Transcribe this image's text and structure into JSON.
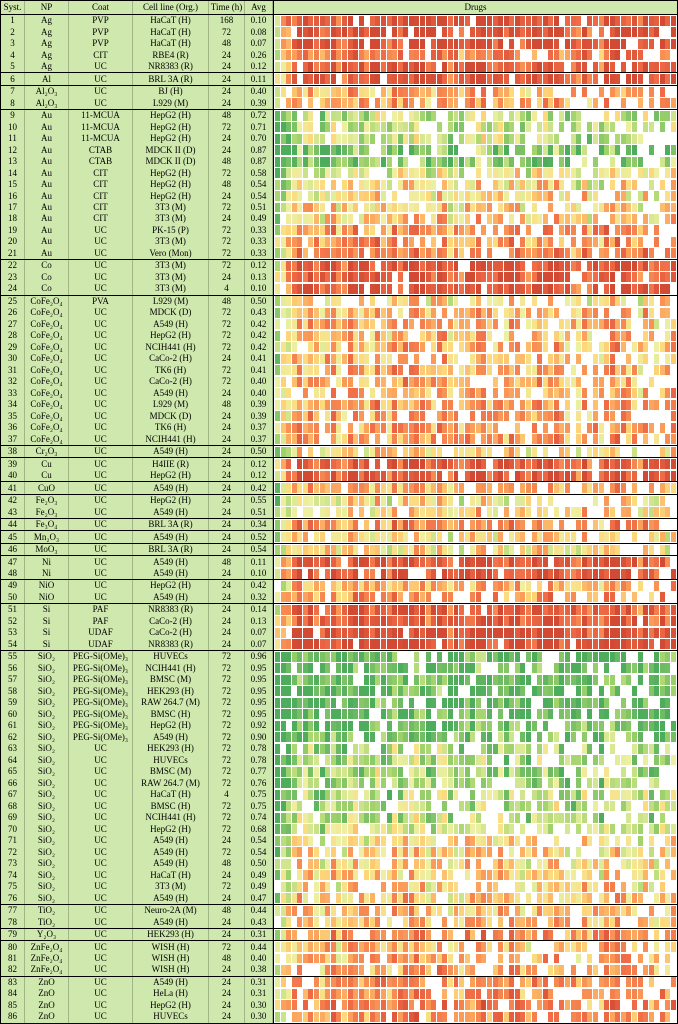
{
  "columns": [
    "Syst.",
    "NP",
    "Coat",
    "Cell line (Org.)",
    "Time (h)",
    "Avg",
    "Drugs"
  ],
  "colors": {
    "table_background": "#cfe8ad",
    "border": "#000000",
    "missing_cell": "#ffffff"
  },
  "chart_data": {
    "type": "heatmap",
    "title": "",
    "row_fields": [
      "syst",
      "np",
      "coat",
      "cell_line",
      "time_h",
      "avg"
    ],
    "n_drug_columns": 72,
    "seed": 42,
    "missing_color": "#ffffff",
    "colormap_stops": [
      [
        0.0,
        "#cf4631"
      ],
      [
        0.2,
        "#ef6a46"
      ],
      [
        0.38,
        "#fb9d59"
      ],
      [
        0.5,
        "#fdd97c"
      ],
      [
        0.62,
        "#edf0a2"
      ],
      [
        0.78,
        "#a3d46c"
      ],
      [
        1.0,
        "#46a85c"
      ]
    ],
    "rows": [
      [
        "1",
        "Ag",
        "PVP",
        "HaCaT (H)",
        "168",
        "0.10"
      ],
      [
        "2",
        "Ag",
        "PVP",
        "HaCaT (H)",
        "72",
        "0.08"
      ],
      [
        "3",
        "Ag",
        "PVP",
        "HaCaT (H)",
        "48",
        "0.07"
      ],
      [
        "4",
        "Ag",
        "CIT",
        "RBE4 (R)",
        "24",
        "0.26"
      ],
      [
        "5",
        "Ag",
        "UC",
        "NR8383 (R)",
        "24",
        "0.12"
      ],
      [
        "6",
        "Al",
        "UC",
        "BRL 3A (R)",
        "24",
        "0.11"
      ],
      [
        "7",
        "Al₂O₃",
        "UC",
        "BJ (H)",
        "24",
        "0.40"
      ],
      [
        "8",
        "Al₂O₃",
        "UC",
        "L929 (M)",
        "24",
        "0.39"
      ],
      [
        "9",
        "Au",
        "11-MCUA",
        "HepG2 (H)",
        "48",
        "0.72"
      ],
      [
        "10",
        "Au",
        "11-MCUA",
        "HepG2 (H)",
        "72",
        "0.71"
      ],
      [
        "11",
        "Au",
        "11-MCUA",
        "HepG2 (H)",
        "24",
        "0.70"
      ],
      [
        "12",
        "Au",
        "CTAB",
        "MDCK II (D)",
        "24",
        "0.87"
      ],
      [
        "13",
        "Au",
        "CTAB",
        "MDCK II (D)",
        "48",
        "0.87"
      ],
      [
        "14",
        "Au",
        "CIT",
        "HepG2 (H)",
        "72",
        "0.58"
      ],
      [
        "15",
        "Au",
        "CIT",
        "HepG2 (H)",
        "48",
        "0.54"
      ],
      [
        "16",
        "Au",
        "CIT",
        "HepG2 (H)",
        "24",
        "0.54"
      ],
      [
        "17",
        "Au",
        "CIT",
        "3T3 (M)",
        "72",
        "0.51"
      ],
      [
        "18",
        "Au",
        "CIT",
        "3T3 (M)",
        "24",
        "0.49"
      ],
      [
        "19",
        "Au",
        "UC",
        "PK-15 (P)",
        "72",
        "0.33"
      ],
      [
        "20",
        "Au",
        "UC",
        "3T3 (M)",
        "72",
        "0.33"
      ],
      [
        "21",
        "Au",
        "UC",
        "Vero (Mon)",
        "72",
        "0.33"
      ],
      [
        "22",
        "Co",
        "UC",
        "3T3 (M)",
        "72",
        "0.12"
      ],
      [
        "23",
        "Co",
        "UC",
        "3T3 (M)",
        "24",
        "0.13"
      ],
      [
        "24",
        "Co",
        "UC",
        "3T3 (M)",
        "4",
        "0.10"
      ],
      [
        "25",
        "CoFe₂O₄",
        "PVA",
        "L929 (M)",
        "48",
        "0.50"
      ],
      [
        "26",
        "CoFe₂O₄",
        "UC",
        "MDCK (D)",
        "72",
        "0.43"
      ],
      [
        "27",
        "CoFe₂O₄",
        "UC",
        "A549 (H)",
        "72",
        "0.42"
      ],
      [
        "28",
        "CoFe₂O₄",
        "UC",
        "HepG2 (H)",
        "72",
        "0.42"
      ],
      [
        "29",
        "CoFe₂O₄",
        "UC",
        "NCIH441 (H)",
        "72",
        "0.42"
      ],
      [
        "30",
        "CoFe₂O₄",
        "UC",
        "CaCo-2 (H)",
        "24",
        "0.41"
      ],
      [
        "31",
        "CoFe₂O₄",
        "UC",
        "TK6 (H)",
        "72",
        "0.41"
      ],
      [
        "32",
        "CoFe₂O₄",
        "UC",
        "CaCo-2 (H)",
        "72",
        "0.40"
      ],
      [
        "33",
        "CoFe₂O₄",
        "UC",
        "A549 (H)",
        "24",
        "0.40"
      ],
      [
        "34",
        "CoFe₂O₄",
        "UC",
        "L929 (M)",
        "48",
        "0.39"
      ],
      [
        "35",
        "CoFe₂O₄",
        "UC",
        "MDCK (D)",
        "24",
        "0.39"
      ],
      [
        "36",
        "CoFe₂O₄",
        "UC",
        "TK6 (H)",
        "24",
        "0.37"
      ],
      [
        "37",
        "CoFe₂O₄",
        "UC",
        "NCIH441 (H)",
        "24",
        "0.37"
      ],
      [
        "38",
        "Cr₂O₃",
        "UC",
        "A549 (H)",
        "24",
        "0.50"
      ],
      [
        "39",
        "Cu",
        "UC",
        "H4IIE (R)",
        "24",
        "0.12"
      ],
      [
        "40",
        "Cu",
        "UC",
        "HepG2 (H)",
        "24",
        "0.12"
      ],
      [
        "41",
        "CuO",
        "UC",
        "A549 (H)",
        "24",
        "0.42"
      ],
      [
        "42",
        "Fe₂O₃",
        "UC",
        "HepG2 (H)",
        "24",
        "0.55"
      ],
      [
        "43",
        "Fe₂O₃",
        "UC",
        "A549 (H)",
        "24",
        "0.51"
      ],
      [
        "44",
        "Fe₃O₄",
        "UC",
        "BRL 3A (R)",
        "24",
        "0.34"
      ],
      [
        "45",
        "Mn₂O₃",
        "UC",
        "A549 (H)",
        "24",
        "0.52"
      ],
      [
        "46",
        "MoO₃",
        "UC",
        "BRL 3A (R)",
        "24",
        "0.54"
      ],
      [
        "47",
        "Ni",
        "UC",
        "A549 (H)",
        "48",
        "0.11"
      ],
      [
        "48",
        "Ni",
        "UC",
        "A549 (H)",
        "24",
        "0.10"
      ],
      [
        "49",
        "NiO",
        "UC",
        "HepG2 (H)",
        "24",
        "0.42"
      ],
      [
        "50",
        "NiO",
        "UC",
        "A549 (H)",
        "24",
        "0.32"
      ],
      [
        "51",
        "Si",
        "PAF",
        "NR8383 (R)",
        "24",
        "0.14"
      ],
      [
        "52",
        "Si",
        "PAF",
        "CaCo-2 (H)",
        "24",
        "0.13"
      ],
      [
        "53",
        "Si",
        "UDAF",
        "CaCo-2 (H)",
        "24",
        "0.07"
      ],
      [
        "54",
        "Si",
        "UDAF",
        "NR8383 (R)",
        "24",
        "0.07"
      ],
      [
        "55",
        "SiO₂",
        "PEG-Si(OMe)₃",
        "HUVECs",
        "72",
        "0.96"
      ],
      [
        "56",
        "SiO₂",
        "PEG-Si(OMe)₃",
        "NCIH441 (H)",
        "72",
        "0.95"
      ],
      [
        "57",
        "SiO₂",
        "PEG-Si(OMe)₃",
        "BMSC (M)",
        "72",
        "0.95"
      ],
      [
        "58",
        "SiO₂",
        "PEG-Si(OMe)₃",
        "HEK293 (H)",
        "72",
        "0.95"
      ],
      [
        "59",
        "SiO₂",
        "PEG-Si(OMe)₃",
        "RAW 264.7 (M)",
        "72",
        "0.95"
      ],
      [
        "60",
        "SiO₂",
        "PEG-Si(OMe)₃",
        "BMSC (H)",
        "72",
        "0.95"
      ],
      [
        "61",
        "SiO₂",
        "PEG-Si(OMe)₃",
        "HepG2 (H)",
        "72",
        "0.92"
      ],
      [
        "62",
        "SiO₂",
        "PEG-Si(OMe)₃",
        "A549 (H)",
        "72",
        "0.90"
      ],
      [
        "63",
        "SiO₂",
        "UC",
        "HEK293 (H)",
        "72",
        "0.78"
      ],
      [
        "64",
        "SiO₂",
        "UC",
        "HUVECs",
        "72",
        "0.78"
      ],
      [
        "65",
        "SiO₂",
        "UC",
        "BMSC (M)",
        "72",
        "0.77"
      ],
      [
        "66",
        "SiO₂",
        "UC",
        "RAW 264.7 (M)",
        "72",
        "0.76"
      ],
      [
        "67",
        "SiO₂",
        "UC",
        "HaCaT (H)",
        "4",
        "0.75"
      ],
      [
        "68",
        "SiO₂",
        "UC",
        "BMSC (H)",
        "72",
        "0.75"
      ],
      [
        "69",
        "SiO₂",
        "UC",
        "NCIH441 (H)",
        "72",
        "0.74"
      ],
      [
        "70",
        "SiO₂",
        "UC",
        "HepG2 (H)",
        "72",
        "0.68"
      ],
      [
        "71",
        "SiO₂",
        "UC",
        "A549 (H)",
        "24",
        "0.54"
      ],
      [
        "72",
        "SiO₂",
        "UC",
        "A549 (H)",
        "72",
        "0.54"
      ],
      [
        "73",
        "SiO₂",
        "UC",
        "A549 (H)",
        "48",
        "0.50"
      ],
      [
        "74",
        "SiO₂",
        "UC",
        "HaCaT (H)",
        "24",
        "0.49"
      ],
      [
        "75",
        "SiO₂",
        "UC",
        "3T3 (M)",
        "72",
        "0.49"
      ],
      [
        "76",
        "SiO₂",
        "UC",
        "A549 (H)",
        "24",
        "0.47"
      ],
      [
        "77",
        "TiO₂",
        "UC",
        "Neuro-2A (M)",
        "48",
        "0.44"
      ],
      [
        "78",
        "TiO₂",
        "UC",
        "A549 (H)",
        "24",
        "0.43"
      ],
      [
        "79",
        "Y₂O₃",
        "UC",
        "HEK293 (H)",
        "24",
        "0.31"
      ],
      [
        "80",
        "ZnFe₂O₄",
        "UC",
        "WISH (H)",
        "72",
        "0.44"
      ],
      [
        "81",
        "ZnFe₂O₄",
        "UC",
        "WISH (H)",
        "48",
        "0.40"
      ],
      [
        "82",
        "ZnFe₂O₄",
        "UC",
        "WISH (H)",
        "24",
        "0.38"
      ],
      [
        "83",
        "ZnO",
        "UC",
        "A549 (H)",
        "24",
        "0.31"
      ],
      [
        "84",
        "ZnO",
        "UC",
        "HeLa (H)",
        "24",
        "0.31"
      ],
      [
        "85",
        "ZnO",
        "UC",
        "HepG2 (H)",
        "24",
        "0.30"
      ],
      [
        "86",
        "ZnO",
        "UC",
        "HUVECs",
        "24",
        "0.30"
      ]
    ]
  }
}
